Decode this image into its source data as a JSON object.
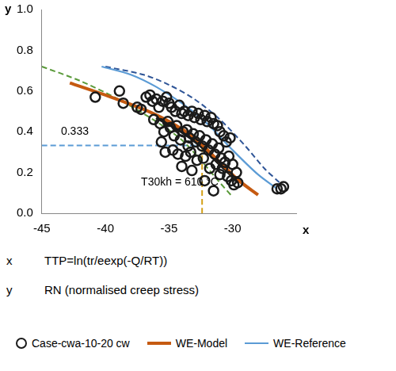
{
  "chart_data": {
    "type": "scatter",
    "x_axis_label": "x",
    "y_axis_label": "y",
    "x_description": "TTP=ln(tr/eexp(-Q/RT))",
    "y_description": "RN (normalised creep stress)",
    "xlim": [
      -45,
      -25
    ],
    "xticks": [
      -45,
      -40,
      -35,
      -30
    ],
    "ylim": [
      0,
      1
    ],
    "yticks": [
      {
        "value": 0,
        "label": "0.0"
      },
      {
        "value": 0.2,
        "label": "0.2"
      },
      {
        "value": 0.4,
        "label": "0.4"
      },
      {
        "value": 0.6,
        "label": "0.6"
      },
      {
        "value": 0.8,
        "label": "0.8"
      },
      {
        "value": 1,
        "label": "1.0"
      }
    ],
    "grid": false,
    "annotations": [
      {
        "text": "0.333",
        "x": -43.5,
        "y": 0.4
      },
      {
        "text": "T30kh = 610 °C",
        "x": -37.2,
        "y": 0.15
      }
    ],
    "series": [
      {
        "name": "Case-cwa-10-20 cw",
        "type": "scatter",
        "marker": "circle",
        "color": "#1a1a1a",
        "x": [
          -40.8,
          -38.9,
          -38.6,
          -37.5,
          -37.2,
          -36.8,
          -36.5,
          -36.3,
          -36,
          -35.8,
          -35.5,
          -35.2,
          -35,
          -34.8,
          -34.5,
          -34.2,
          -34,
          -33.8,
          -33.5,
          -33.2,
          -33,
          -32.7,
          -32.5,
          -32.2,
          -32,
          -31.7,
          -31.5,
          -31.2,
          -31,
          -30.7,
          -30.5,
          -30.2,
          -36.2,
          -35.7,
          -35.4,
          -35.1,
          -34.9,
          -34.6,
          -34.4,
          -34.1,
          -33.9,
          -33.6,
          -33.4,
          -33.1,
          -32.9,
          -32.6,
          -32.4,
          -32.1,
          -31.9,
          -31.6,
          -31.4,
          -31.1,
          -30.9,
          -30.6,
          -30.3,
          -30,
          -29.7,
          -29.6,
          -29.9,
          -30.4,
          -30.8,
          -31.3,
          -31.8,
          -32.3,
          -32.8,
          -33.3,
          -33.7,
          -34.3,
          -34.7,
          -35.3,
          -35.6,
          -34,
          -33.2,
          -32.2,
          -31.5,
          -33.5,
          -31,
          -30.1,
          -26.5,
          -26,
          -26.2
        ],
        "values": [
          0.57,
          0.6,
          0.54,
          0.52,
          0.51,
          0.57,
          0.58,
          0.55,
          0.56,
          0.52,
          0.55,
          0.57,
          0.54,
          0.52,
          0.5,
          0.53,
          0.49,
          0.5,
          0.48,
          0.5,
          0.47,
          0.49,
          0.46,
          0.48,
          0.45,
          0.47,
          0.44,
          0.43,
          0.4,
          0.38,
          0.35,
          0.37,
          0.46,
          0.44,
          0.4,
          0.45,
          0.42,
          0.38,
          0.43,
          0.36,
          0.4,
          0.41,
          0.37,
          0.39,
          0.35,
          0.38,
          0.33,
          0.36,
          0.31,
          0.34,
          0.29,
          0.32,
          0.27,
          0.25,
          0.28,
          0.24,
          0.2,
          0.15,
          0.14,
          0.18,
          0.22,
          0.24,
          0.22,
          0.27,
          0.26,
          0.3,
          0.28,
          0.29,
          0.31,
          0.3,
          0.35,
          0.23,
          0.21,
          0.16,
          0.11,
          0.33,
          0.19,
          0.16,
          0.12,
          0.13,
          0.12
        ]
      },
      {
        "name": "WE-Model",
        "type": "line",
        "line_style": "solid",
        "color": "#c55a11",
        "x": [
          -42.8,
          -40,
          -37,
          -35,
          -33,
          -31,
          -29.5,
          -28
        ],
        "values": [
          0.64,
          0.58,
          0.51,
          0.45,
          0.37,
          0.25,
          0.16,
          0.09
        ]
      },
      {
        "name": "WE-Reference",
        "type": "line",
        "line_style": "solid",
        "color": "#5b9bd5",
        "x": [
          -40.3,
          -38,
          -36,
          -34,
          -32,
          -30,
          -28,
          -26.5
        ],
        "values": [
          0.72,
          0.68,
          0.62,
          0.54,
          0.44,
          0.31,
          0.19,
          0.12
        ]
      },
      {
        "type": "line",
        "line_style": "dashed",
        "color": "#2f5597",
        "x": [
          -40,
          -37,
          -35,
          -33,
          -31,
          -29,
          -27.5,
          -26.3
        ],
        "values": [
          0.72,
          0.68,
          0.63,
          0.56,
          0.46,
          0.33,
          0.22,
          0.15
        ]
      },
      {
        "type": "line",
        "line_style": "dashed",
        "color": "#5a9a3a",
        "x": [
          -45,
          -42,
          -39,
          -36,
          -34,
          -32.5,
          -31,
          -30
        ],
        "values": [
          0.72,
          0.65,
          0.56,
          0.45,
          0.36,
          0.26,
          0.15,
          0.08
        ]
      },
      {
        "type": "line",
        "line_style": "solid",
        "color": "#1a1a1a",
        "x": [
          -36,
          -34,
          -32.5,
          -31,
          -29.5
        ],
        "values": [
          0.47,
          0.4,
          0.33,
          0.24,
          0.15
        ]
      },
      {
        "type": "line",
        "line_style": "dashed",
        "color": "#5b9bd5",
        "x": [
          -45,
          -32.4
        ],
        "values": [
          0.333,
          0.333
        ]
      },
      {
        "type": "line",
        "line_style": "dashed",
        "color": "#d4a017",
        "x": [
          -32.4,
          -32.4
        ],
        "values": [
          0,
          0.333
        ]
      }
    ]
  }
}
